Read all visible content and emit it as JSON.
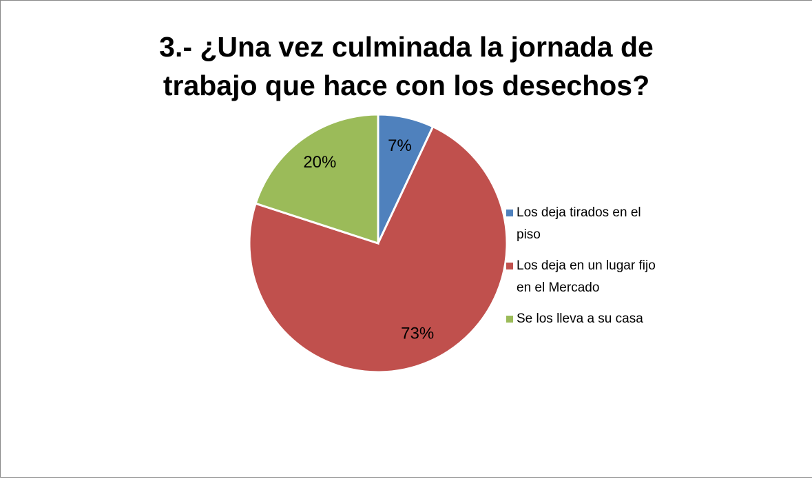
{
  "chart_data": {
    "type": "pie",
    "title": "3.- ¿Una vez culminada la jornada de trabajo que hace con los desechos?",
    "categories": [
      "Los deja tirados en el piso",
      "Los deja en un lugar fijo en el Mercado",
      "Se los lleva a su casa"
    ],
    "values": [
      7,
      73,
      20
    ],
    "value_labels": [
      "7%",
      "73%",
      "20%"
    ],
    "colors": [
      "#4f81bd",
      "#c0504d",
      "#9bbb59"
    ],
    "legend": "right"
  }
}
